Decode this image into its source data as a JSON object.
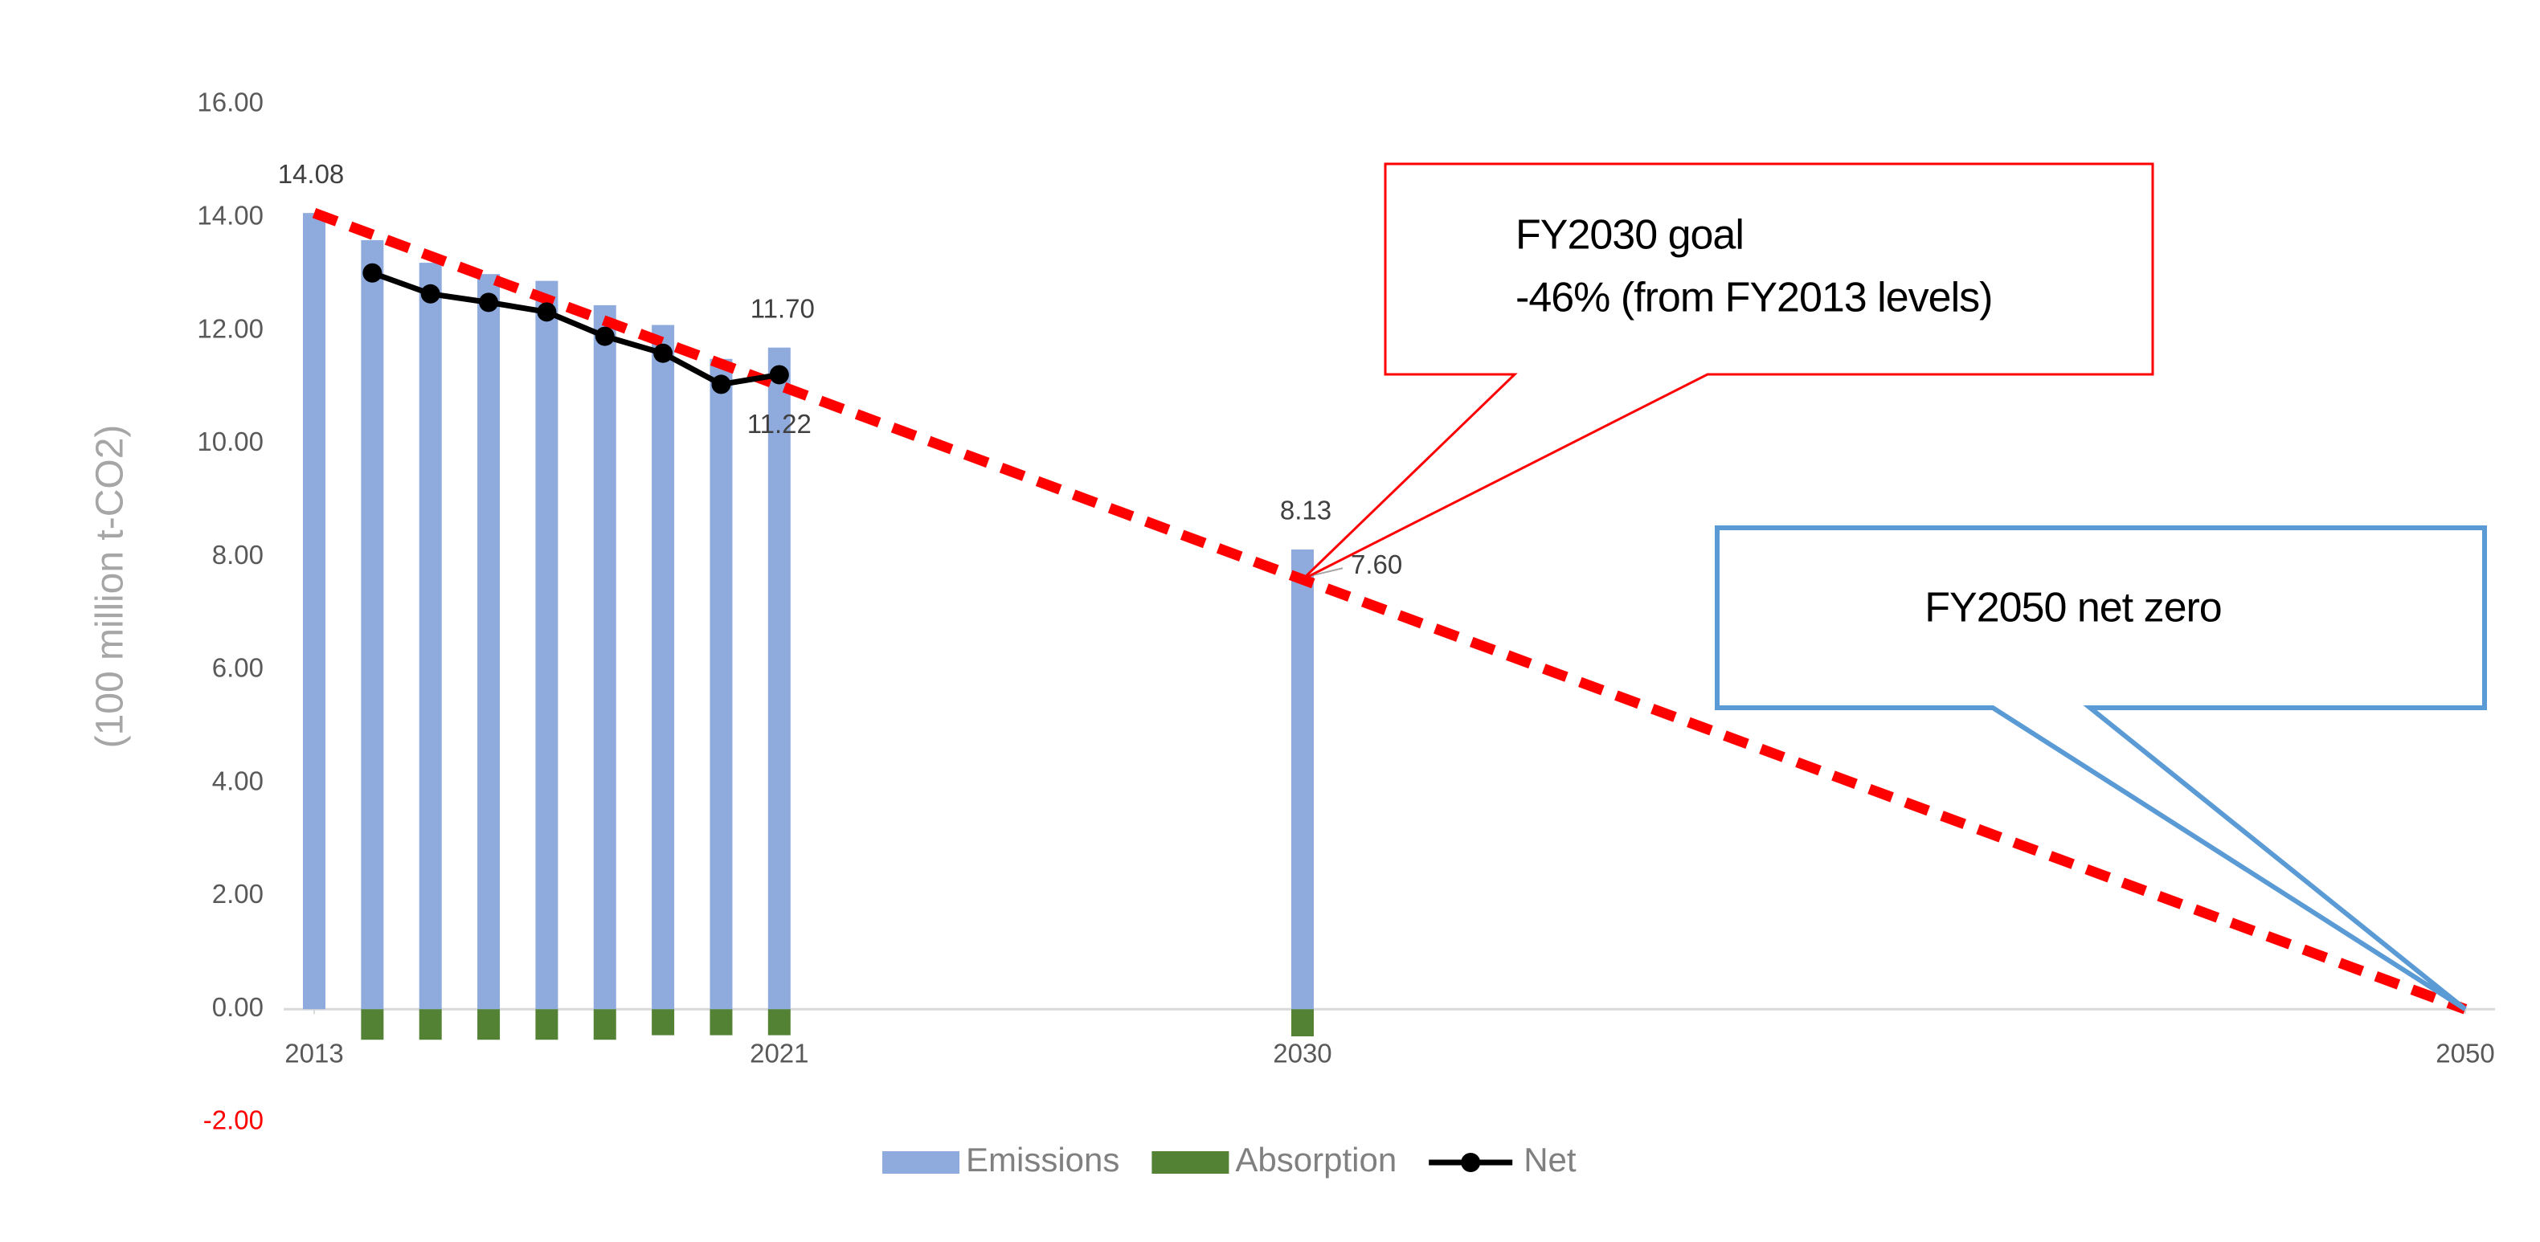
{
  "chart_data": {
    "type": "bar",
    "y_label": "(100 million t-CO2)",
    "x": [
      2013,
      2014,
      2015,
      2016,
      2017,
      2018,
      2019,
      2020,
      2021,
      2030
    ],
    "xlim": [
      2013,
      2050
    ],
    "xticks": [
      2013,
      2021,
      2030,
      2050
    ],
    "ylim": [
      -2,
      16
    ],
    "yticks": [
      {
        "value": -2,
        "label": "-2.00",
        "color": "#ff0000"
      },
      {
        "value": 0,
        "label": "0.00"
      },
      {
        "value": 2,
        "label": "2.00"
      },
      {
        "value": 4,
        "label": "4.00"
      },
      {
        "value": 6,
        "label": "6.00"
      },
      {
        "value": 8,
        "label": "8.00"
      },
      {
        "value": 10,
        "label": "10.00"
      },
      {
        "value": 12,
        "label": "12.00"
      },
      {
        "value": 14,
        "label": "14.00"
      },
      {
        "value": 16,
        "label": "16.00"
      }
    ],
    "series": [
      {
        "name": "Emissions",
        "type": "bar",
        "color": "#8faadc",
        "values": [
          14.08,
          13.6,
          13.2,
          13.0,
          12.88,
          12.45,
          12.1,
          11.5,
          11.7,
          8.13
        ],
        "value_labels": [
          "14.08",
          null,
          null,
          null,
          null,
          null,
          null,
          null,
          "11.70",
          "8.13"
        ]
      },
      {
        "name": "Absorption",
        "type": "bar",
        "color": "#548235",
        "values": [
          null,
          -0.54,
          -0.54,
          -0.54,
          -0.54,
          -0.54,
          -0.46,
          -0.46,
          -0.46,
          -0.48
        ]
      },
      {
        "name": "Net",
        "type": "line",
        "color": "#000000",
        "values": [
          null,
          13.02,
          12.65,
          12.5,
          12.33,
          11.9,
          11.6,
          11.05,
          11.22,
          null
        ],
        "value_labels": [
          null,
          null,
          null,
          null,
          null,
          null,
          null,
          null,
          "11.22",
          null
        ]
      }
    ],
    "target": {
      "color": "#ff0000",
      "x": [
        2013,
        2030,
        2050
      ],
      "values": [
        14.08,
        7.6,
        0
      ],
      "value_labels": [
        null,
        "7.60",
        null
      ]
    },
    "annotations": [
      {
        "lines": [
          "FY2030 goal",
          "-46% (from FY2013 levels)"
        ],
        "color": "#ff0000"
      },
      {
        "lines": [
          "FY2050 net zero"
        ],
        "color": "#5b9bd5"
      }
    ]
  }
}
